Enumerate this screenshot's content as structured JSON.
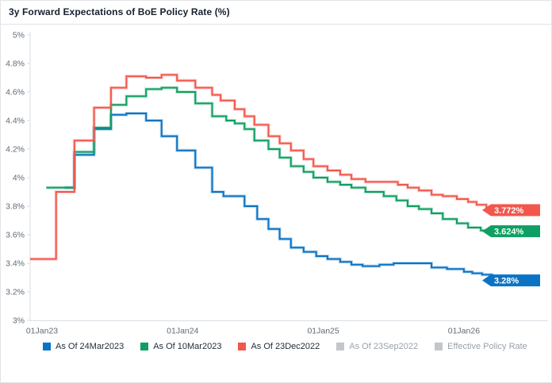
{
  "title": "3y Forward Expectations of BoE Policy Rate (%)",
  "colors": {
    "title_text": "#16212e",
    "axis_text": "#5f6b76",
    "axis_line": "#d9dee4",
    "divider": "#dde4eb",
    "card_border": "#e3e4e6",
    "blue": "#0b73c4",
    "green": "#0f9f62",
    "red": "#f2574d",
    "inactive_gray": "#c3c6ca"
  },
  "chart_data": {
    "type": "line",
    "step": true,
    "title": "3y Forward Expectations of BoE Policy Rate (%)",
    "grid": false,
    "legend_position": "bottom",
    "x_axis": {
      "min": 2022.915,
      "max": 2026.42,
      "ticks": [
        2023,
        2024,
        2025,
        2026
      ],
      "tick_labels": [
        "01Jan23",
        "01Jan24",
        "01Jan25",
        "01Jan26"
      ]
    },
    "y_axis": {
      "min": 3.0,
      "max": 5.0,
      "ticks": [
        3.0,
        3.2,
        3.4,
        3.6,
        3.8,
        4.0,
        4.2,
        4.4,
        4.6,
        4.8,
        5.0
      ],
      "tick_labels": [
        "3%",
        "3.2%",
        "3.4%",
        "3.6%",
        "3.8%",
        "4%",
        "4.2%",
        "4.4%",
        "4.6%",
        "4.8%",
        "5%"
      ]
    },
    "series": [
      {
        "name": "As Of 24Mar2023",
        "color": "#0b73c4",
        "end_label": "3.28%",
        "end_value": 3.28,
        "points": [
          [
            2023.16,
            3.93
          ],
          [
            2023.23,
            4.16
          ],
          [
            2023.37,
            4.34
          ],
          [
            2023.49,
            4.44
          ],
          [
            2023.6,
            4.45
          ],
          [
            2023.74,
            4.4
          ],
          [
            2023.85,
            4.29
          ],
          [
            2023.96,
            4.19
          ],
          [
            2024.09,
            4.07
          ],
          [
            2024.21,
            3.9
          ],
          [
            2024.29,
            3.87
          ],
          [
            2024.44,
            3.8
          ],
          [
            2024.53,
            3.71
          ],
          [
            2024.61,
            3.64
          ],
          [
            2024.69,
            3.57
          ],
          [
            2024.77,
            3.51
          ],
          [
            2024.86,
            3.48
          ],
          [
            2024.95,
            3.45
          ],
          [
            2025.03,
            3.43
          ],
          [
            2025.12,
            3.41
          ],
          [
            2025.2,
            3.39
          ],
          [
            2025.28,
            3.38
          ],
          [
            2025.4,
            3.39
          ],
          [
            2025.5,
            3.4
          ],
          [
            2025.77,
            3.37
          ],
          [
            2025.88,
            3.36
          ],
          [
            2026.0,
            3.34
          ],
          [
            2026.06,
            3.33
          ],
          [
            2026.13,
            3.32
          ],
          [
            2026.2,
            3.28
          ]
        ]
      },
      {
        "name": "As Of 10Mar2023",
        "color": "#0f9f62",
        "end_label": "3.624%",
        "end_value": 3.624,
        "points": [
          [
            2023.03,
            3.93
          ],
          [
            2023.23,
            4.18
          ],
          [
            2023.37,
            4.35
          ],
          [
            2023.49,
            4.51
          ],
          [
            2023.6,
            4.57
          ],
          [
            2023.74,
            4.62
          ],
          [
            2023.85,
            4.63
          ],
          [
            2023.96,
            4.6
          ],
          [
            2024.09,
            4.52
          ],
          [
            2024.21,
            4.43
          ],
          [
            2024.31,
            4.4
          ],
          [
            2024.37,
            4.38
          ],
          [
            2024.44,
            4.34
          ],
          [
            2024.51,
            4.26
          ],
          [
            2024.61,
            4.2
          ],
          [
            2024.69,
            4.14
          ],
          [
            2024.77,
            4.08
          ],
          [
            2024.86,
            4.04
          ],
          [
            2024.93,
            4.0
          ],
          [
            2025.03,
            3.97
          ],
          [
            2025.12,
            3.95
          ],
          [
            2025.2,
            3.93
          ],
          [
            2025.3,
            3.9
          ],
          [
            2025.43,
            3.87
          ],
          [
            2025.52,
            3.84
          ],
          [
            2025.6,
            3.8
          ],
          [
            2025.68,
            3.78
          ],
          [
            2025.77,
            3.75
          ],
          [
            2025.85,
            3.71
          ],
          [
            2025.95,
            3.68
          ],
          [
            2026.03,
            3.65
          ],
          [
            2026.12,
            3.63
          ],
          [
            2026.2,
            3.624
          ]
        ]
      },
      {
        "name": "As Of 23Dec2022",
        "color": "#f2574d",
        "end_label": "3.772%",
        "end_value": 3.772,
        "points": [
          [
            2022.915,
            3.43
          ],
          [
            2023.1,
            3.9
          ],
          [
            2023.23,
            4.26
          ],
          [
            2023.37,
            4.49
          ],
          [
            2023.49,
            4.63
          ],
          [
            2023.6,
            4.71
          ],
          [
            2023.74,
            4.7
          ],
          [
            2023.85,
            4.72
          ],
          [
            2023.96,
            4.68
          ],
          [
            2024.09,
            4.63
          ],
          [
            2024.21,
            4.58
          ],
          [
            2024.27,
            4.54
          ],
          [
            2024.37,
            4.48
          ],
          [
            2024.44,
            4.43
          ],
          [
            2024.51,
            4.37
          ],
          [
            2024.61,
            4.29
          ],
          [
            2024.69,
            4.24
          ],
          [
            2024.77,
            4.19
          ],
          [
            2024.86,
            4.13
          ],
          [
            2024.93,
            4.08
          ],
          [
            2025.03,
            4.05
          ],
          [
            2025.12,
            4.02
          ],
          [
            2025.2,
            3.99
          ],
          [
            2025.3,
            3.97
          ],
          [
            2025.53,
            3.95
          ],
          [
            2025.6,
            3.93
          ],
          [
            2025.68,
            3.91
          ],
          [
            2025.77,
            3.88
          ],
          [
            2025.85,
            3.87
          ],
          [
            2025.95,
            3.85
          ],
          [
            2026.03,
            3.83
          ],
          [
            2026.09,
            3.81
          ],
          [
            2026.16,
            3.79
          ],
          [
            2026.2,
            3.772
          ]
        ]
      }
    ],
    "legend": [
      {
        "label": "As Of 24Mar2023",
        "color": "#0b73c4",
        "active": true
      },
      {
        "label": "As Of 10Mar2023",
        "color": "#0f9f62",
        "active": true
      },
      {
        "label": "As Of 23Dec2022",
        "color": "#f2574d",
        "active": true
      },
      {
        "label": "As Of 23Sep2022",
        "color": "#c3c6ca",
        "active": false
      },
      {
        "label": "Effective Policy Rate",
        "color": "#c3c6ca",
        "active": false
      }
    ]
  }
}
